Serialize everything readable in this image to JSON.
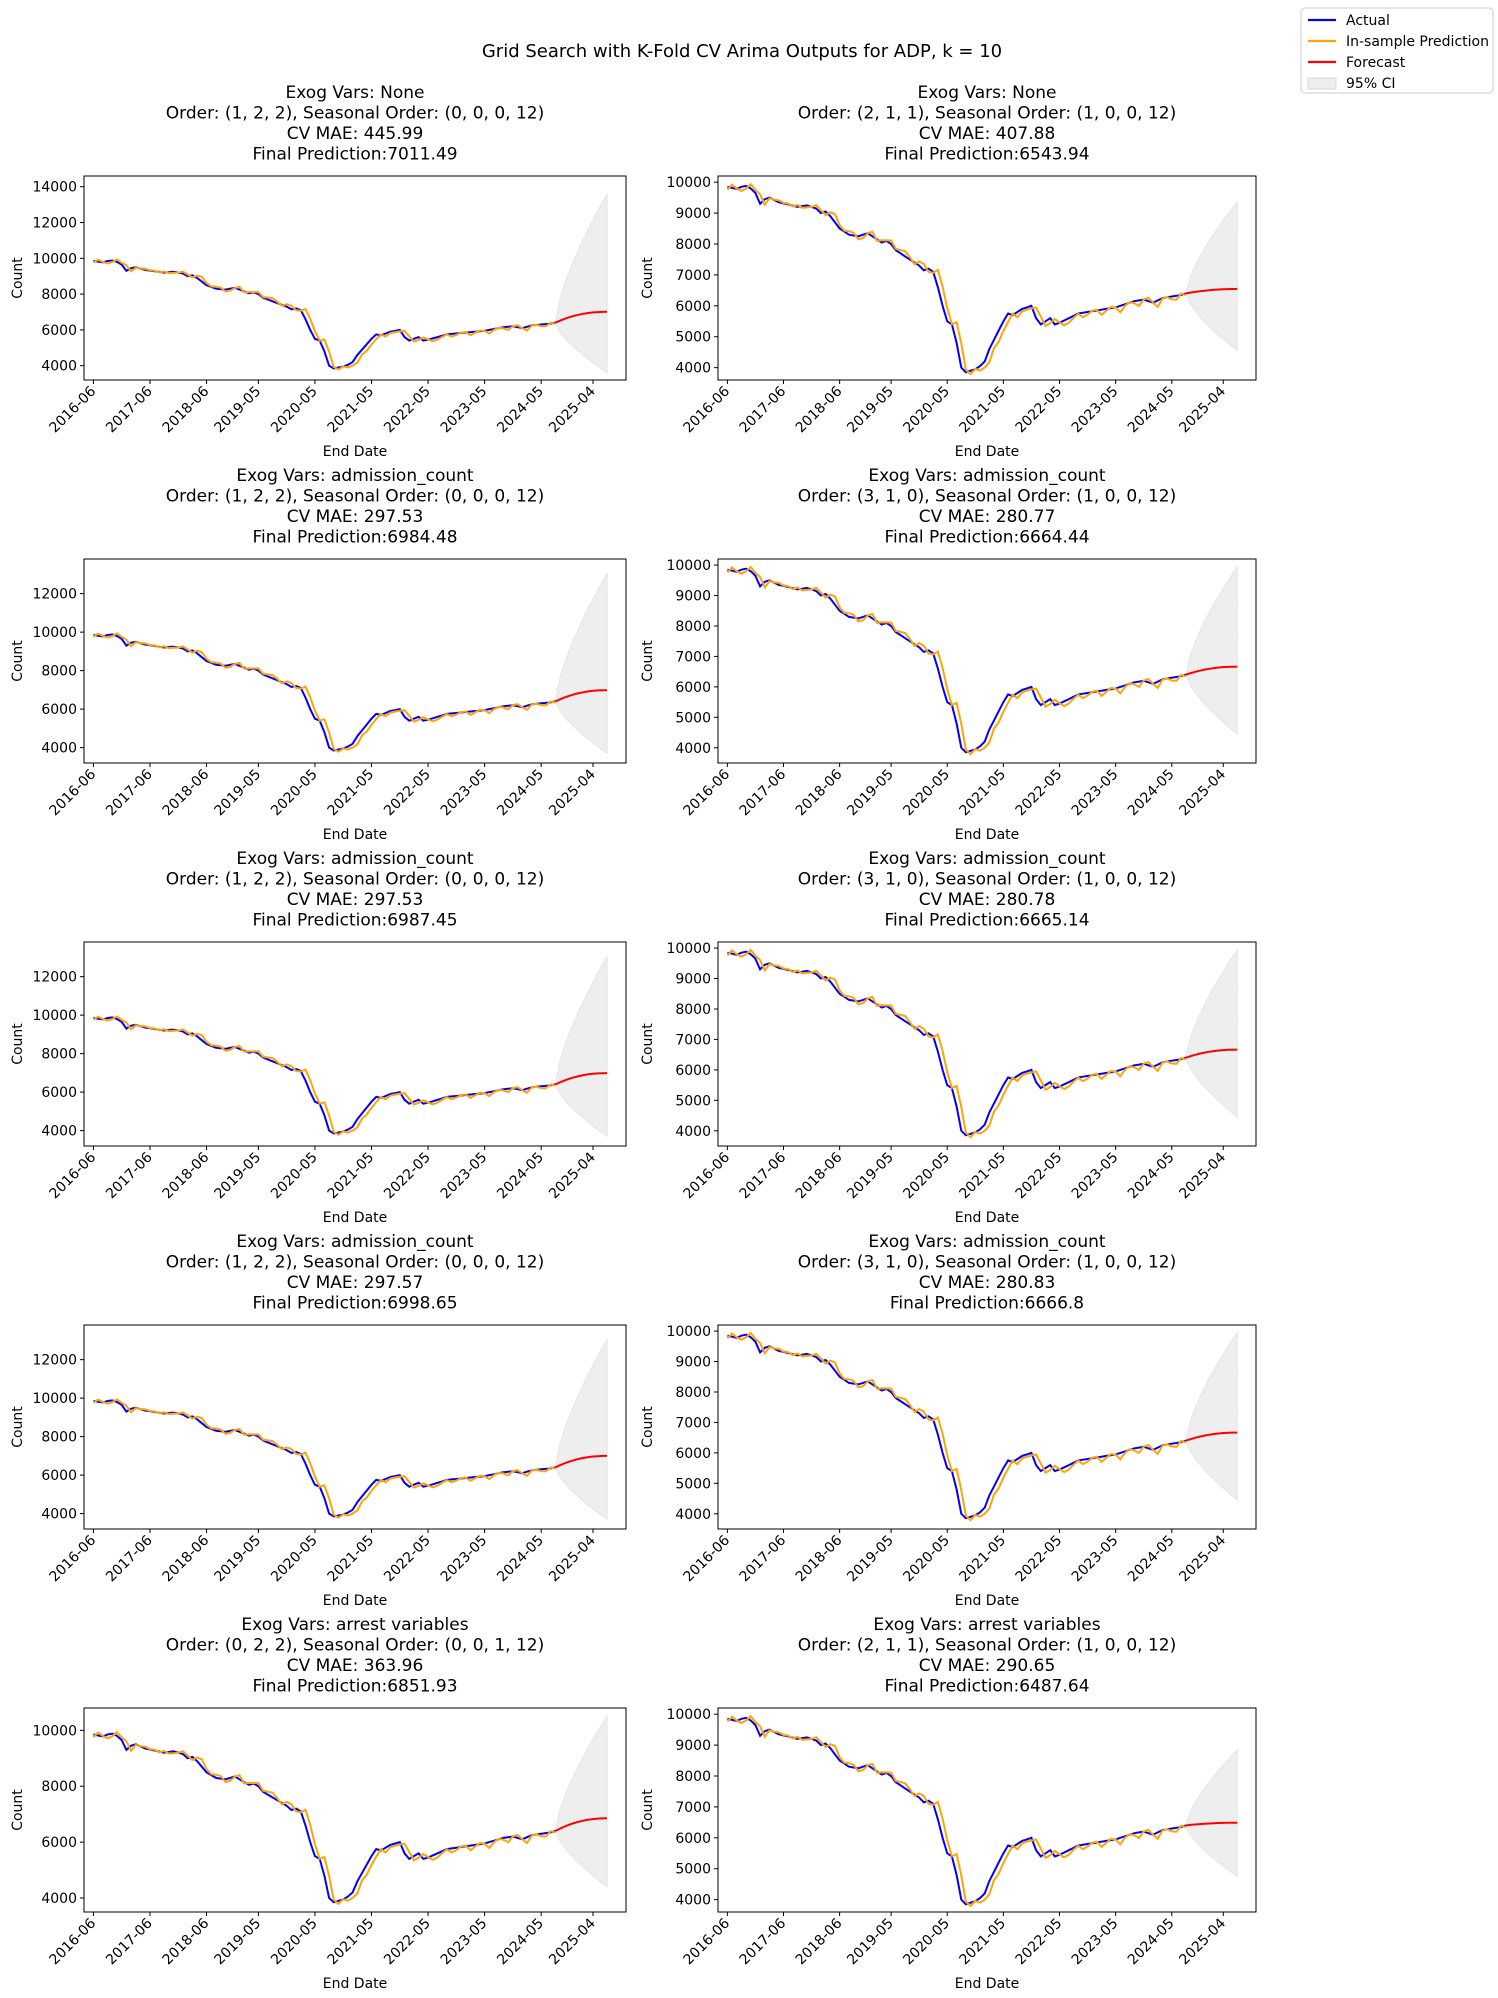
{
  "suptitle": "Grid Search with K-Fold CV Arima Outputs for ADP, k = 10",
  "legend": [
    {
      "label": "Actual",
      "color": "#0000ff",
      "kind": "line"
    },
    {
      "label": "In-sample Prediction",
      "color": "#ffa500",
      "kind": "line"
    },
    {
      "label": "Forecast",
      "color": "#ff0000",
      "kind": "line"
    },
    {
      "label": "95% CI",
      "color": "#eeeeee",
      "kind": "patch"
    }
  ],
  "common": {
    "xlabel": "End Date",
    "ylabel": "Count",
    "xtick_labels": [
      "2016-06",
      "2017-06",
      "2018-06",
      "2019-05",
      "2020-05",
      "2021-05",
      "2022-05",
      "2023-05",
      "2024-05",
      "2025-04"
    ],
    "actual_color": "#0000ff",
    "insample_color": "#ffa500",
    "forecast_color": "#ff0000",
    "ci_color": "#eeeeee"
  },
  "chart_data": [
    {
      "type": "line",
      "title_lines": [
        "Exog Vars: None",
        "Order: (1, 2, 2), Seasonal Order: (0, 0, 0, 12)",
        "CV MAE: 445.99",
        "Final Prediction:7011.49"
      ],
      "ylim": [
        3200,
        14600
      ],
      "yticks": [
        4000,
        6000,
        8000,
        10000,
        12000,
        14000
      ],
      "forecast_end": 7011,
      "ci_upper_end": 13600,
      "ci_lower_end": 3600
    },
    {
      "type": "line",
      "title_lines": [
        "Exog Vars: None",
        "Order: (2, 1, 1), Seasonal Order: (1, 0, 0, 12)",
        "CV MAE: 407.88",
        "Final Prediction:6543.94"
      ],
      "ylim": [
        3600,
        10200
      ],
      "yticks": [
        4000,
        5000,
        6000,
        7000,
        8000,
        9000,
        10000
      ],
      "forecast_end": 6544,
      "ci_upper_end": 9350,
      "ci_lower_end": 4550
    },
    {
      "type": "line",
      "title_lines": [
        "Exog Vars: admission_count",
        "Order: (1, 2, 2), Seasonal Order: (0, 0, 0, 12)",
        "CV MAE: 297.53",
        "Final Prediction:6984.48"
      ],
      "ylim": [
        3200,
        13800
      ],
      "yticks": [
        4000,
        6000,
        8000,
        10000,
        12000
      ],
      "forecast_end": 6984,
      "ci_upper_end": 13050,
      "ci_lower_end": 3700
    },
    {
      "type": "line",
      "title_lines": [
        "Exog Vars: admission_count",
        "Order: (3, 1, 0), Seasonal Order: (1, 0, 0, 12)",
        "CV MAE: 280.77",
        "Final Prediction:6664.44"
      ],
      "ylim": [
        3500,
        10200
      ],
      "yticks": [
        4000,
        5000,
        6000,
        7000,
        8000,
        9000,
        10000
      ],
      "forecast_end": 6664,
      "ci_upper_end": 9950,
      "ci_lower_end": 4450
    },
    {
      "type": "line",
      "title_lines": [
        "Exog Vars: admission_count",
        "Order: (1, 2, 2), Seasonal Order: (0, 0, 0, 12)",
        "CV MAE: 297.53",
        "Final Prediction:6987.45"
      ],
      "ylim": [
        3200,
        13800
      ],
      "yticks": [
        4000,
        6000,
        8000,
        10000,
        12000
      ],
      "forecast_end": 6987,
      "ci_upper_end": 13050,
      "ci_lower_end": 3700
    },
    {
      "type": "line",
      "title_lines": [
        "Exog Vars: admission_count",
        "Order: (3, 1, 0), Seasonal Order: (1, 0, 0, 12)",
        "CV MAE: 280.78",
        "Final Prediction:6665.14"
      ],
      "ylim": [
        3500,
        10200
      ],
      "yticks": [
        4000,
        5000,
        6000,
        7000,
        8000,
        9000,
        10000
      ],
      "forecast_end": 6665,
      "ci_upper_end": 9950,
      "ci_lower_end": 4450
    },
    {
      "type": "line",
      "title_lines": [
        "Exog Vars: admission_count",
        "Order: (1, 2, 2), Seasonal Order: (0, 0, 0, 12)",
        "CV MAE: 297.57",
        "Final Prediction:6998.65"
      ],
      "ylim": [
        3200,
        13800
      ],
      "yticks": [
        4000,
        6000,
        8000,
        10000,
        12000
      ],
      "forecast_end": 6999,
      "ci_upper_end": 13050,
      "ci_lower_end": 3700
    },
    {
      "type": "line",
      "title_lines": [
        "Exog Vars: admission_count",
        "Order: (3, 1, 0), Seasonal Order: (1, 0, 0, 12)",
        "CV MAE: 280.83",
        "Final Prediction:6666.8"
      ],
      "ylim": [
        3500,
        10200
      ],
      "yticks": [
        4000,
        5000,
        6000,
        7000,
        8000,
        9000,
        10000
      ],
      "forecast_end": 6667,
      "ci_upper_end": 9950,
      "ci_lower_end": 4450
    },
    {
      "type": "line",
      "title_lines": [
        "Exog Vars: arrest variables",
        "Order: (0, 2, 2), Seasonal Order: (0, 0, 1, 12)",
        "CV MAE: 363.96",
        "Final Prediction:6851.93"
      ],
      "ylim": [
        3500,
        10800
      ],
      "yticks": [
        4000,
        6000,
        8000,
        10000
      ],
      "forecast_end": 6852,
      "ci_upper_end": 10500,
      "ci_lower_end": 4400
    },
    {
      "type": "line",
      "title_lines": [
        "Exog Vars: arrest variables",
        "Order: (2, 1, 1), Seasonal Order: (1, 0, 0, 12)",
        "CV MAE: 290.65",
        "Final Prediction:6487.64"
      ],
      "ylim": [
        3600,
        10200
      ],
      "yticks": [
        4000,
        5000,
        6000,
        7000,
        8000,
        9000,
        10000
      ],
      "forecast_end": 6488,
      "ci_upper_end": 8850,
      "ci_lower_end": 4750
    }
  ]
}
